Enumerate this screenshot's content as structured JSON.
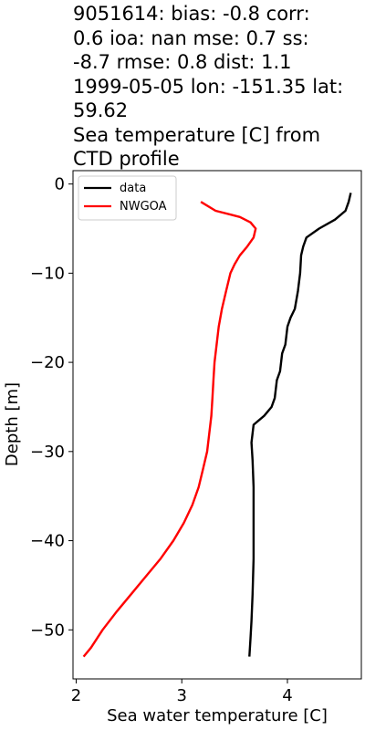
{
  "chart_data": {
    "type": "line",
    "title_lines": [
      "9051614: bias: -0.8  corr:",
      "0.6  ioa: nan  mse: 0.7  ss:",
      "-8.7  rmse: 0.8  dist: 1.1",
      "1999-05-05 lon: -151.35 lat:",
      "59.62",
      "Sea temperature [C] from",
      "CTD profile"
    ],
    "xlabel": "Sea water temperature [C]",
    "ylabel": "Depth [m]",
    "xlim": [
      1.97,
      4.7
    ],
    "ylim": [
      -55.5,
      1.5
    ],
    "xticks": [
      2,
      3,
      4
    ],
    "xtick_labels": [
      "2",
      "3",
      "4"
    ],
    "yticks": [
      0,
      -10,
      -20,
      -30,
      -40,
      -50
    ],
    "ytick_labels": [
      "0",
      "−10",
      "−20",
      "−30",
      "−40",
      "−50"
    ],
    "legend_position": "top-left",
    "series": [
      {
        "name": "data",
        "color": "#000000",
        "points": [
          [
            4.6,
            -1
          ],
          [
            4.58,
            -2
          ],
          [
            4.55,
            -3
          ],
          [
            4.45,
            -4
          ],
          [
            4.3,
            -5
          ],
          [
            4.18,
            -6
          ],
          [
            4.15,
            -7
          ],
          [
            4.13,
            -8
          ],
          [
            4.12,
            -10
          ],
          [
            4.1,
            -12
          ],
          [
            4.07,
            -14
          ],
          [
            4.03,
            -15
          ],
          [
            4.0,
            -16
          ],
          [
            3.98,
            -18
          ],
          [
            3.95,
            -19
          ],
          [
            3.93,
            -21
          ],
          [
            3.9,
            -22
          ],
          [
            3.88,
            -24
          ],
          [
            3.85,
            -25
          ],
          [
            3.78,
            -26
          ],
          [
            3.68,
            -27
          ],
          [
            3.66,
            -29
          ],
          [
            3.67,
            -31
          ],
          [
            3.68,
            -34
          ],
          [
            3.68,
            -38
          ],
          [
            3.68,
            -42
          ],
          [
            3.67,
            -46
          ],
          [
            3.66,
            -49
          ],
          [
            3.65,
            -51
          ],
          [
            3.64,
            -53
          ]
        ]
      },
      {
        "name": "NWGOA",
        "color": "#ff0000",
        "points": [
          [
            3.18,
            -2
          ],
          [
            3.32,
            -3
          ],
          [
            3.55,
            -3.7
          ],
          [
            3.65,
            -4.3
          ],
          [
            3.7,
            -5
          ],
          [
            3.68,
            -6
          ],
          [
            3.62,
            -7
          ],
          [
            3.55,
            -8
          ],
          [
            3.5,
            -9
          ],
          [
            3.46,
            -10
          ],
          [
            3.42,
            -12
          ],
          [
            3.38,
            -14
          ],
          [
            3.35,
            -16
          ],
          [
            3.33,
            -18
          ],
          [
            3.31,
            -20
          ],
          [
            3.3,
            -22
          ],
          [
            3.29,
            -24
          ],
          [
            3.28,
            -26
          ],
          [
            3.26,
            -28
          ],
          [
            3.24,
            -30
          ],
          [
            3.2,
            -32
          ],
          [
            3.16,
            -34
          ],
          [
            3.1,
            -36
          ],
          [
            3.02,
            -38
          ],
          [
            2.92,
            -40
          ],
          [
            2.8,
            -42
          ],
          [
            2.66,
            -44
          ],
          [
            2.52,
            -46
          ],
          [
            2.38,
            -48
          ],
          [
            2.25,
            -50
          ],
          [
            2.14,
            -52
          ],
          [
            2.07,
            -53
          ]
        ]
      }
    ]
  }
}
